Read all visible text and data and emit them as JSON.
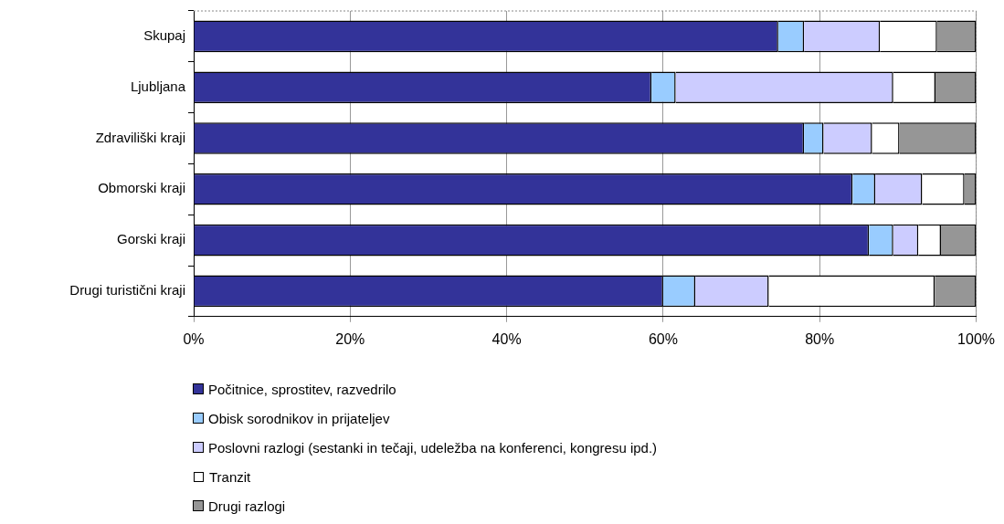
{
  "chart_data": {
    "type": "bar",
    "orientation": "horizontal",
    "stacked": true,
    "categories": [
      "Skupaj",
      "Ljubljana",
      "Zdraviliški kraji",
      "Obmorski kraji",
      "Gorski kraji",
      "Drugi turistični kraji"
    ],
    "series": [
      {
        "name": "Počitnice, sprostitev, razvedrilo",
        "color": "#333399",
        "values": [
          74.7,
          58.5,
          78.0,
          84.2,
          86.3,
          60.0
        ]
      },
      {
        "name": "Obisk sorodnikov in prijateljev",
        "color": "#99ccff",
        "values": [
          3.3,
          3.1,
          2.5,
          2.9,
          3.1,
          4.1
        ]
      },
      {
        "name": "Poslovni razlogi (sestanki in tečaji, udeležba na konferenci, kongresu ipd.)",
        "color": "#ccccff",
        "values": [
          9.7,
          27.8,
          6.2,
          6.0,
          3.2,
          9.4
        ]
      },
      {
        "name": "Tranzit",
        "color": "#ffffff",
        "values": [
          7.3,
          5.4,
          3.5,
          5.4,
          2.9,
          21.2
        ]
      },
      {
        "name": "Drugi razlogi",
        "color": "#969696",
        "values": [
          5.0,
          5.2,
          9.8,
          1.5,
          4.5,
          5.3
        ]
      }
    ],
    "xlim": [
      0,
      100
    ],
    "xticks": [
      {
        "value": 0,
        "label": "0%"
      },
      {
        "value": 20,
        "label": "20%"
      },
      {
        "value": 40,
        "label": "40%"
      },
      {
        "value": 60,
        "label": "60%"
      },
      {
        "value": 80,
        "label": "80%"
      },
      {
        "value": 100,
        "label": "100%"
      }
    ],
    "grid": "x",
    "legend": "bottom"
  }
}
